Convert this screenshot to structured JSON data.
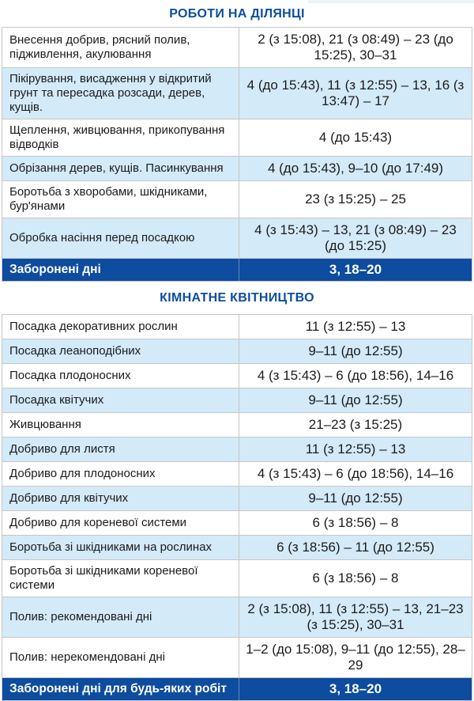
{
  "colors": {
    "header_text_blue": "#0b4e9f",
    "forbidden_row_bg": "#0d4c9f",
    "forbidden_row_text": "#ffffff",
    "alt_row_bg": "#d3eaf8",
    "row_bg": "#ffffff",
    "border_gray": "#c6c6c6",
    "body_text": "#1b1b1b"
  },
  "sections": [
    {
      "title": "РОБОТИ НА ДІЛЯНЦІ",
      "rows": [
        {
          "label": "Внесення добрив, рясний полив, підживлення, акулювання",
          "value": "2 (з 15:08), 21 (з 08:49) – 23 (до 15:25), 30–31"
        },
        {
          "label": "Пікірування, висадження у відкритий грунт та пересадка розсади, дерев, кущів.",
          "value": "4 (до 15:43), 11 (з 12:55) – 13, 16 (з 13:47) – 17"
        },
        {
          "label": "Щеплення, живцювання, прикопування відводків",
          "value": "4 (до 15:43)"
        },
        {
          "label": "Обрізання дерев, кущів. Пасинкування",
          "value": "4 (до 15:43), 9–10 (до 17:49)"
        },
        {
          "label": "Боротьба з хворобами, шкідниками, бур'янами",
          "value": "23 (з 15:25) – 25"
        },
        {
          "label": "Обробка насіння перед посадкою",
          "value": "4 (з 15:43) – 13, 21 (з 08:49) – 23 (до 15:25)"
        },
        {
          "label": "Заборонені дні",
          "value": "3, 18–20",
          "forbidden": true
        }
      ]
    },
    {
      "title": "КІМНАТНЕ КВІТНИЦТВО",
      "rows": [
        {
          "label": "Посадка декоративних рослин",
          "value": "11 (з 12:55) – 13"
        },
        {
          "label": "Посадка леаноподібних",
          "value": "9–11 (до 12:55)"
        },
        {
          "label": "Посадка плодоносних",
          "value": "4 (з 15:43) – 6 (до 18:56), 14–16"
        },
        {
          "label": "Посадка квітучих",
          "value": "9–11 (до 12:55)"
        },
        {
          "label": "Живцювання",
          "value": "21–23 (з 15:25)"
        },
        {
          "label": "Добриво для листя",
          "value": "11 (з 12:55) – 13"
        },
        {
          "label": "Добриво для плодоносних",
          "value": "4 (з 15:43) – 6 (до 18:56), 14–16"
        },
        {
          "label": "Добриво для квітучих",
          "value": "9–11 (до 12:55)"
        },
        {
          "label": "Добриво для кореневої системи",
          "value": "6 (з 18:56) – 8"
        },
        {
          "label": "Боротьба зі шкідниками на рослинах",
          "value": "6 (з 18:56) – 11 (до 12:55)"
        },
        {
          "label": "Боротьба зі шкідниками кореневої системи",
          "value": "6 (з 18:56) – 8"
        },
        {
          "label": "Полив: рекомендовані дні",
          "value": "2 (з 15:08), 11 (з 12:55) – 13, 21–23 (з 15:25), 30–31"
        },
        {
          "label": "Полив: нерекомендовані дні",
          "value": "1–2 (до 15:08), 9–11 (до 12:55), 28–29"
        },
        {
          "label": "Заборонені дні для будь-яких робіт",
          "value": "3, 18–20",
          "forbidden": true
        }
      ]
    }
  ]
}
